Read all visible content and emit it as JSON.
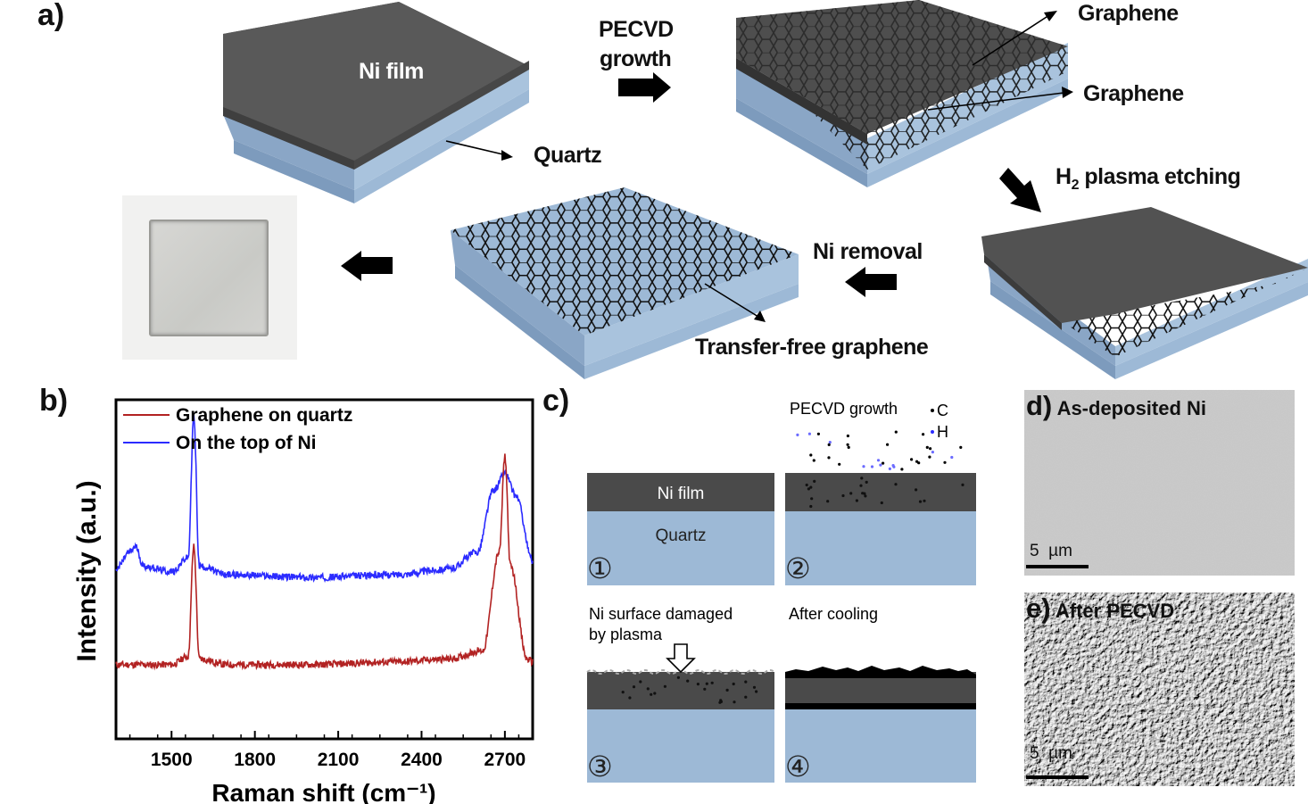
{
  "panel_a": {
    "letter": "a)",
    "ni_film": "Ni film",
    "quartz": "Quartz",
    "pecvd_line1": "PECVD",
    "pecvd_line2": "growth",
    "graphene_top": "Graphene",
    "graphene_bottom": "Graphene",
    "h2_prefix": "H",
    "h2_sub": "2",
    "h2_suffix": " plasma etching",
    "ni_removal": "Ni removal",
    "transfer_free": "Transfer-free graphene"
  },
  "panel_b": {
    "letter": "b)",
    "chart_data": {
      "type": "line",
      "xlabel": "Raman shift (cm⁻¹)",
      "ylabel": "Intensity (a.u.)",
      "xlim": [
        1300,
        2800
      ],
      "xticks": [
        1500,
        1800,
        2100,
        2400,
        2700
      ],
      "legend_position": "top-left",
      "series": [
        {
          "name": "Graphene on quartz",
          "color": "#b22222",
          "x": [
            1300,
            1400,
            1500,
            1560,
            1580,
            1600,
            1700,
            2000,
            2300,
            2500,
            2620,
            2680,
            2700,
            2720,
            2780,
            2800
          ],
          "y": [
            0.2,
            0.2,
            0.2,
            0.23,
            0.62,
            0.22,
            0.2,
            0.2,
            0.21,
            0.22,
            0.25,
            0.6,
            0.94,
            0.55,
            0.22,
            0.21
          ]
        },
        {
          "name": "On the top of Ni",
          "color": "#2b2bff",
          "x": [
            1300,
            1350,
            1370,
            1400,
            1500,
            1560,
            1580,
            1600,
            1700,
            2000,
            2300,
            2500,
            2600,
            2660,
            2700,
            2740,
            2800
          ],
          "y": [
            0.54,
            0.6,
            0.62,
            0.55,
            0.53,
            0.58,
            1.08,
            0.55,
            0.52,
            0.51,
            0.52,
            0.54,
            0.6,
            0.82,
            0.88,
            0.8,
            0.57
          ]
        }
      ]
    }
  },
  "panel_c": {
    "letter": "c)",
    "pecvd_growth": "PECVD growth",
    "legend_c": "C",
    "legend_h": "H",
    "ni_film": "Ni film",
    "quartz": "Quartz",
    "step1": "①",
    "step2": "②",
    "step3": "③",
    "step4": "④",
    "damaged_line1": "Ni surface damaged",
    "damaged_line2": "by plasma",
    "after_cooling": "After cooling"
  },
  "panel_d": {
    "letter": "d)",
    "title": "As-deposited Ni",
    "scale": "5  µm"
  },
  "panel_e": {
    "letter": "e)",
    "title": "After PECVD",
    "scale": "5  µm"
  },
  "colors": {
    "quartz": "#9db9d6",
    "ni": "#4a4a4a",
    "red_series": "#b22222",
    "blue_series": "#2b2bff"
  }
}
